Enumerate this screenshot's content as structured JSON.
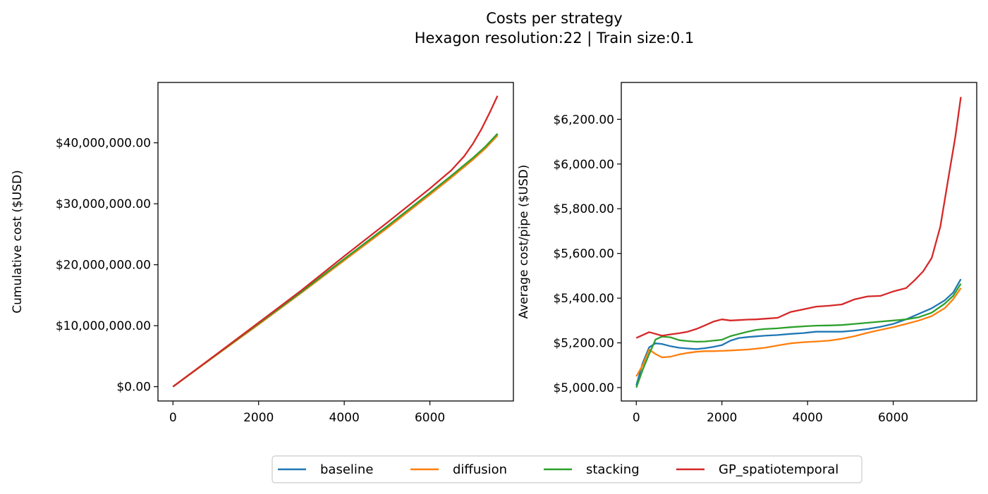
{
  "figure": {
    "title": "Costs per strategy",
    "subtitle": "Hexagon resolution:22 | Train size:0.1"
  },
  "legend": {
    "placement": "bottom-center",
    "entries": [
      {
        "name": "baseline",
        "color": "#1f77b4"
      },
      {
        "name": "diffusion",
        "color": "#ff7f0e"
      },
      {
        "name": "stacking",
        "color": "#2ca02c"
      },
      {
        "name": "GP_spatiotemporal",
        "color": "#d62728"
      }
    ]
  },
  "chart_data": [
    {
      "type": "line",
      "title": "",
      "xlabel": "",
      "ylabel": "Cumulative cost ($USD)",
      "xlim": [
        -350,
        7950
      ],
      "ylim": [
        -2350000,
        49900000
      ],
      "xticks": [
        0,
        2000,
        4000,
        6000
      ],
      "xtick_labels": [
        "0",
        "2000",
        "4000",
        "6000"
      ],
      "yticks": [
        0,
        10000000,
        20000000,
        30000000,
        40000000
      ],
      "ytick_labels": [
        "$0.00",
        "$10,000,000.00",
        "$20,000,000.00",
        "$30,000,000.00",
        "$40,000,000.00"
      ],
      "grid": false,
      "series": [
        {
          "name": "baseline",
          "color": "#1f77b4",
          "x": [
            0,
            1000,
            2000,
            3000,
            4000,
            5000,
            6000,
            6500,
            7000,
            7300,
            7580
          ],
          "y": [
            0,
            5150000,
            10300000,
            15500000,
            20900000,
            26200000,
            31700000,
            34500000,
            37400000,
            39300000,
            41400000
          ]
        },
        {
          "name": "diffusion",
          "color": "#ff7f0e",
          "x": [
            0,
            1000,
            2000,
            3000,
            4000,
            5000,
            6000,
            6500,
            7000,
            7300,
            7580
          ],
          "y": [
            0,
            5120000,
            10200000,
            15400000,
            20700000,
            26000000,
            31500000,
            34300000,
            37200000,
            39100000,
            41200000
          ]
        },
        {
          "name": "stacking",
          "color": "#2ca02c",
          "x": [
            0,
            1000,
            2000,
            3000,
            4000,
            5000,
            6000,
            6500,
            7000,
            7300,
            7580
          ],
          "y": [
            0,
            5170000,
            10350000,
            15550000,
            20950000,
            26300000,
            31800000,
            34600000,
            37500000,
            39400000,
            41500000
          ]
        },
        {
          "name": "GP_spatiotemporal",
          "color": "#d62728",
          "x": [
            0,
            1000,
            2000,
            3000,
            4000,
            5000,
            6000,
            6500,
            6800,
            7000,
            7200,
            7400,
            7580
          ],
          "y": [
            0,
            5230000,
            10500000,
            15800000,
            21400000,
            26900000,
            32500000,
            35500000,
            37800000,
            39800000,
            42200000,
            45000000,
            47700000
          ]
        }
      ]
    },
    {
      "type": "line",
      "title": "",
      "xlabel": "",
      "ylabel": "Average cost/pipe ($USD)",
      "xlim": [
        -350,
        7950
      ],
      "ylim": [
        4940,
        6365
      ],
      "xticks": [
        0,
        2000,
        4000,
        6000
      ],
      "xtick_labels": [
        "0",
        "2000",
        "4000",
        "6000"
      ],
      "yticks": [
        5000,
        5200,
        5400,
        5600,
        5800,
        6000,
        6200
      ],
      "ytick_labels": [
        "$5,000.00",
        "$5,200.00",
        "$5,400.00",
        "$5,600.00",
        "$5,800.00",
        "$6,000.00",
        "$6,200.00"
      ],
      "grid": false,
      "series": [
        {
          "name": "baseline",
          "color": "#1f77b4",
          "x": [
            0,
            150,
            300,
            450,
            600,
            800,
            1000,
            1200,
            1400,
            1600,
            1800,
            2000,
            2200,
            2400,
            2600,
            2800,
            3000,
            3300,
            3600,
            3900,
            4200,
            4500,
            4800,
            5100,
            5400,
            5700,
            6000,
            6300,
            6600,
            6900,
            7200,
            7400,
            7580
          ],
          "y": [
            5010,
            5110,
            5180,
            5198,
            5195,
            5185,
            5178,
            5175,
            5172,
            5176,
            5182,
            5190,
            5210,
            5222,
            5226,
            5229,
            5232,
            5235,
            5240,
            5244,
            5250,
            5250,
            5250,
            5255,
            5262,
            5272,
            5285,
            5305,
            5330,
            5355,
            5390,
            5425,
            5485
          ]
        },
        {
          "name": "diffusion",
          "color": "#ff7f0e",
          "x": [
            0,
            150,
            300,
            450,
            600,
            800,
            1000,
            1200,
            1400,
            1600,
            1800,
            2000,
            2200,
            2400,
            2600,
            2800,
            3000,
            3300,
            3600,
            3900,
            4200,
            4500,
            4800,
            5100,
            5400,
            5700,
            6000,
            6300,
            6600,
            6900,
            7200,
            7400,
            7580
          ],
          "y": [
            5050,
            5100,
            5170,
            5150,
            5135,
            5138,
            5148,
            5155,
            5160,
            5163,
            5163,
            5164,
            5166,
            5168,
            5170,
            5174,
            5178,
            5188,
            5198,
            5203,
            5206,
            5210,
            5218,
            5230,
            5245,
            5258,
            5270,
            5285,
            5300,
            5320,
            5355,
            5395,
            5445
          ]
        },
        {
          "name": "stacking",
          "color": "#2ca02c",
          "x": [
            0,
            150,
            300,
            450,
            600,
            800,
            1000,
            1200,
            1400,
            1600,
            1800,
            2000,
            2200,
            2400,
            2600,
            2800,
            3000,
            3300,
            3600,
            3900,
            4200,
            4500,
            4800,
            5100,
            5400,
            5700,
            6000,
            6300,
            6600,
            6900,
            7200,
            7400,
            7580
          ],
          "y": [
            5000,
            5080,
            5150,
            5215,
            5228,
            5225,
            5212,
            5208,
            5205,
            5206,
            5210,
            5214,
            5230,
            5240,
            5250,
            5258,
            5262,
            5265,
            5270,
            5274,
            5277,
            5278,
            5280,
            5285,
            5290,
            5295,
            5300,
            5305,
            5315,
            5335,
            5375,
            5410,
            5465
          ]
        },
        {
          "name": "GP_spatiotemporal",
          "color": "#d62728",
          "x": [
            0,
            150,
            300,
            450,
            600,
            800,
            1000,
            1200,
            1400,
            1600,
            1800,
            2000,
            2200,
            2400,
            2600,
            2800,
            3000,
            3300,
            3600,
            3900,
            4200,
            4500,
            4800,
            5100,
            5400,
            5700,
            6000,
            6300,
            6500,
            6700,
            6900,
            7100,
            7300,
            7450,
            7580
          ],
          "y": [
            5222,
            5235,
            5248,
            5240,
            5232,
            5238,
            5243,
            5250,
            5262,
            5278,
            5295,
            5305,
            5300,
            5302,
            5304,
            5305,
            5308,
            5312,
            5338,
            5350,
            5362,
            5366,
            5372,
            5395,
            5408,
            5410,
            5430,
            5445,
            5480,
            5520,
            5580,
            5720,
            5950,
            6120,
            6300
          ]
        }
      ]
    }
  ]
}
